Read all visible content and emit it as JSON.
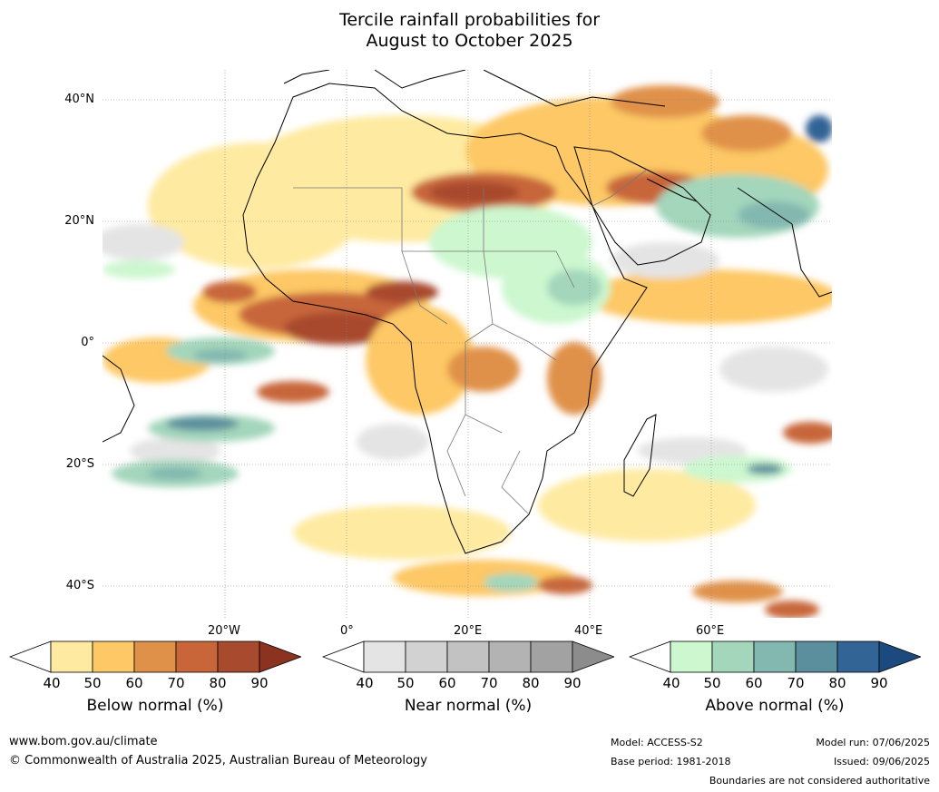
{
  "title_line1": "Tercile rainfall probabilities for",
  "title_line2": "August to October 2025",
  "lat_labels": [
    "40°N",
    "20°N",
    "0°",
    "20°S",
    "40°S"
  ],
  "lon_labels": [
    "20°W",
    "0°",
    "20°E",
    "40°E",
    "60°E"
  ],
  "colorbars": [
    {
      "caption": "Below normal (%)",
      "ticks": [
        "40",
        "50",
        "60",
        "70",
        "80",
        "90"
      ],
      "colors": [
        "#ffffff",
        "#feeaa0",
        "#fdc865",
        "#e09149",
        "#c8663a",
        "#a84a2d",
        "#8b3320"
      ]
    },
    {
      "caption": "Near normal (%)",
      "ticks": [
        "40",
        "50",
        "60",
        "70",
        "80",
        "90"
      ],
      "colors": [
        "#ffffff",
        "#e4e4e4",
        "#d2d2d2",
        "#c2c2c2",
        "#b3b3b3",
        "#a2a2a2",
        "#8c8c8c"
      ]
    },
    {
      "caption": "Above normal (%)",
      "ticks": [
        "40",
        "50",
        "60",
        "70",
        "80",
        "90"
      ],
      "colors": [
        "#ffffff",
        "#ccf7cf",
        "#a3d6bb",
        "#83b8b0",
        "#5b8f9e",
        "#326495",
        "#1d4a7e"
      ]
    }
  ],
  "footer": {
    "website": "www.bom.gov.au/climate",
    "copyright": "© Commonwealth of Australia 2025, Australian Bureau of Meteorology",
    "model": "Model: ACCESS-S2",
    "base_period": "Base period: 1981-2018",
    "model_run": "Model run: 07/06/2025",
    "issued": "Issued: 09/06/2025",
    "disclaimer": "Boundaries are not considered authoritative"
  }
}
